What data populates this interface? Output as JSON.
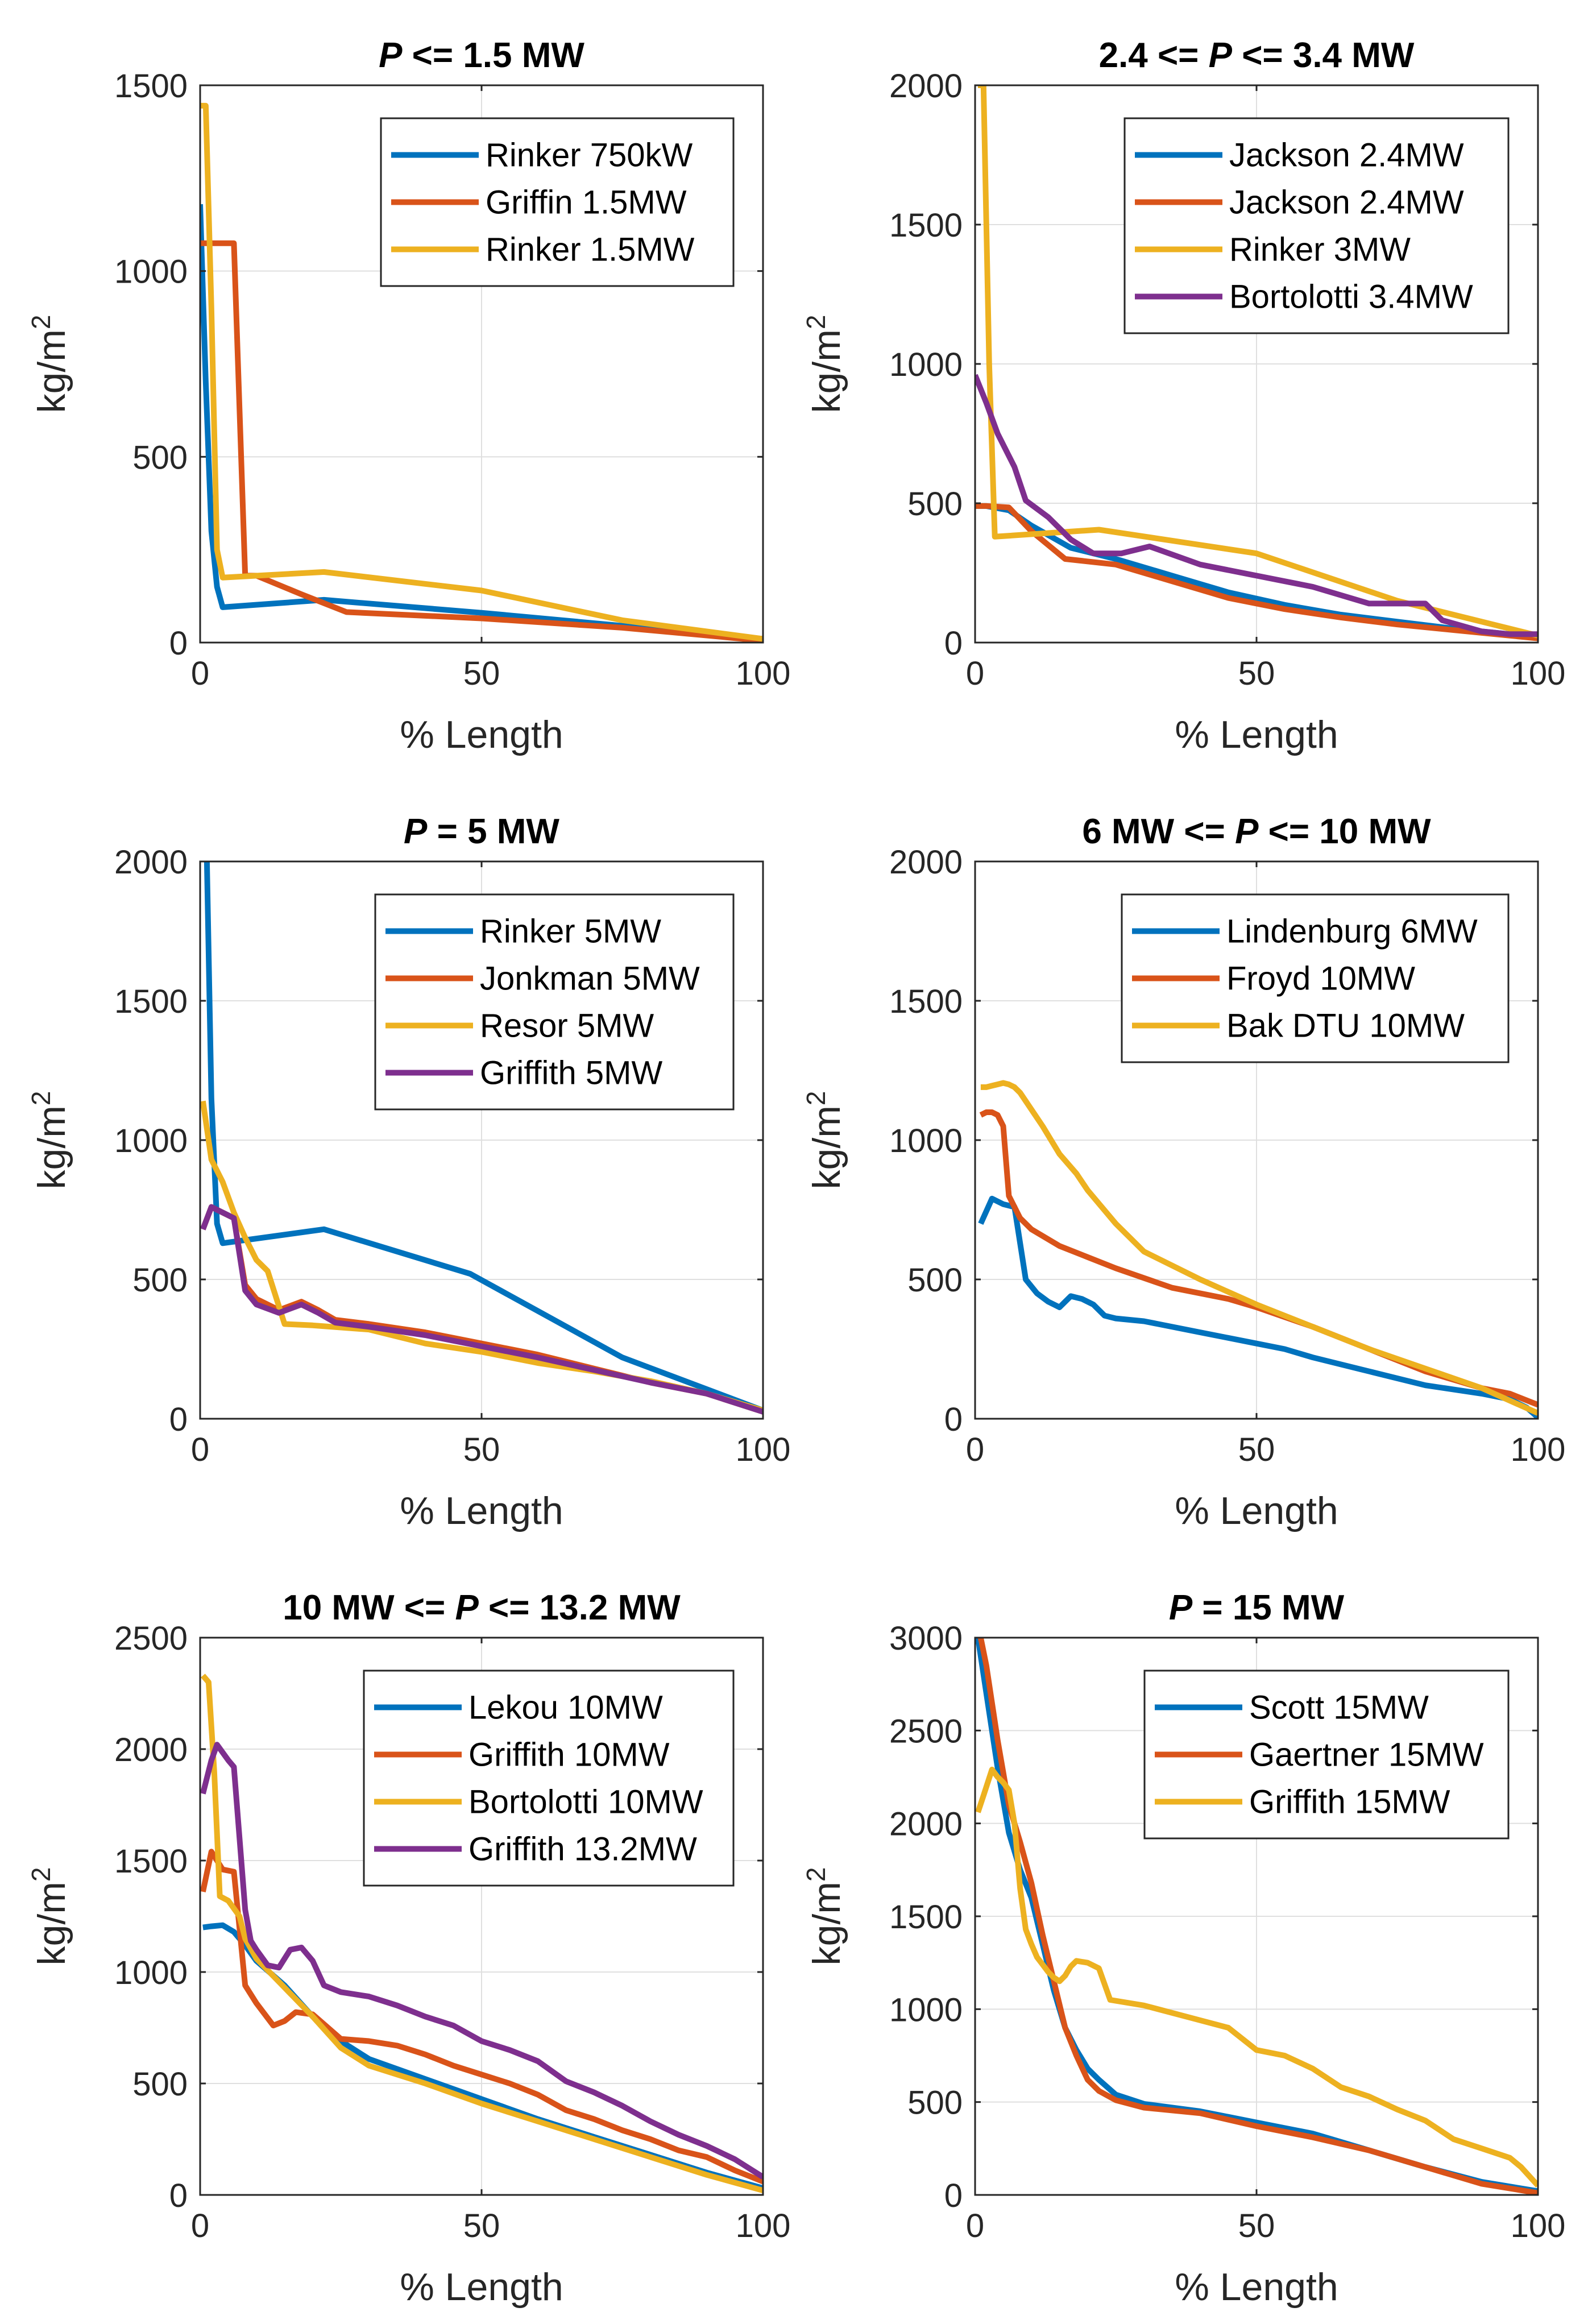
{
  "colors": [
    "#0072BD",
    "#D95319",
    "#EDB120",
    "#7E2F8E"
  ],
  "chart_data": [
    {
      "type": "line",
      "title": {
        "pre": "",
        "italic": "P",
        "post": " <= 1.5 MW"
      },
      "xlabel": "% Length",
      "ylabel_base": "kg/m",
      "ylabel_sup": "2",
      "xlim": [
        0,
        100
      ],
      "ylim": [
        0,
        1500
      ],
      "xticks": [
        0,
        50,
        100
      ],
      "yticks": [
        0,
        500,
        1000,
        1500
      ],
      "legend_position": "top-right",
      "series": [
        {
          "name": "Rinker 750kW",
          "x": [
            0,
            1,
            2,
            3,
            4,
            22,
            50,
            75,
            100
          ],
          "y": [
            1180,
            700,
            300,
            150,
            95,
            115,
            80,
            45,
            10
          ]
        },
        {
          "name": "Griffin 1.5MW",
          "x": [
            0,
            1,
            6,
            8,
            10,
            18,
            26,
            50,
            75,
            100
          ],
          "y": [
            1075,
            1075,
            1075,
            180,
            180,
            130,
            82,
            65,
            40,
            5
          ]
        },
        {
          "name": "Rinker 1.5MW",
          "x": [
            0,
            1,
            2,
            3,
            4,
            22,
            50,
            75,
            100
          ],
          "y": [
            1445,
            1445,
            900,
            250,
            175,
            190,
            140,
            60,
            10
          ]
        }
      ]
    },
    {
      "type": "line",
      "title": {
        "pre": "2.4 <= ",
        "italic": "P",
        "post": " <= 3.4 MW"
      },
      "xlabel": "% Length",
      "ylabel_base": "kg/m",
      "ylabel_sup": "2",
      "xlim": [
        0,
        100
      ],
      "ylim": [
        0,
        2000
      ],
      "xticks": [
        0,
        50,
        100
      ],
      "yticks": [
        0,
        500,
        1000,
        1500,
        2000
      ],
      "legend_position": "top-right",
      "series": [
        {
          "name": "Jackson 2.4MW",
          "x": [
            0,
            2,
            6,
            10,
            17,
            25,
            35,
            45,
            55,
            65,
            75,
            85,
            95,
            100
          ],
          "y": [
            490,
            490,
            475,
            420,
            340,
            300,
            240,
            180,
            135,
            100,
            75,
            50,
            30,
            20
          ]
        },
        {
          "name": "Jackson 2.4MW",
          "x": [
            0,
            2,
            6,
            10,
            16,
            25,
            35,
            45,
            55,
            65,
            75,
            85,
            95,
            100
          ],
          "y": [
            490,
            490,
            485,
            400,
            300,
            280,
            220,
            160,
            120,
            90,
            65,
            45,
            25,
            15
          ]
        },
        {
          "name": "Rinker 3MW",
          "x": [
            0.5,
            1.5,
            2.5,
            3.5,
            22,
            50,
            75,
            100
          ],
          "y": [
            2000,
            2000,
            1000,
            380,
            405,
            320,
            150,
            25
          ]
        },
        {
          "name": "Bortolotti 3.4MW",
          "x": [
            0,
            2,
            4,
            7,
            9,
            13,
            17,
            21,
            26,
            31,
            40,
            50,
            60,
            70,
            80,
            83,
            90,
            95,
            100
          ],
          "y": [
            960,
            860,
            750,
            630,
            510,
            450,
            370,
            320,
            320,
            345,
            280,
            240,
            200,
            140,
            140,
            80,
            40,
            30,
            30
          ]
        }
      ]
    },
    {
      "type": "line",
      "title": {
        "pre": "",
        "italic": "P",
        "post": " = 5 MW"
      },
      "xlabel": "% Length",
      "ylabel_base": "kg/m",
      "ylabel_sup": "2",
      "xlim": [
        0,
        100
      ],
      "ylim": [
        0,
        2000
      ],
      "xticks": [
        0,
        50,
        100
      ],
      "yticks": [
        0,
        500,
        1000,
        1500,
        2000
      ],
      "legend_position": "top-right",
      "series": [
        {
          "name": "Rinker 5MW",
          "x": [
            1.2,
            2,
            3,
            4,
            22,
            48,
            75,
            100
          ],
          "y": [
            2000,
            1150,
            700,
            630,
            680,
            520,
            220,
            30
          ]
        },
        {
          "name": "Jonkman 5MW",
          "x": [
            0.5,
            2,
            4,
            6,
            8,
            10,
            14,
            18,
            21,
            24,
            30,
            40,
            50,
            60,
            70,
            80,
            90,
            100
          ],
          "y": [
            680,
            760,
            740,
            720,
            480,
            430,
            390,
            420,
            390,
            355,
            340,
            310,
            270,
            230,
            180,
            130,
            90,
            25
          ]
        },
        {
          "name": "Resor 5MW",
          "x": [
            0.5,
            2,
            4,
            6,
            8,
            10,
            12,
            15,
            20,
            30,
            40,
            50,
            60,
            70,
            80,
            90,
            100
          ],
          "y": [
            1140,
            930,
            850,
            740,
            650,
            570,
            530,
            340,
            335,
            320,
            270,
            240,
            200,
            170,
            135,
            90,
            30
          ]
        },
        {
          "name": "Griffith 5MW",
          "x": [
            0.5,
            2,
            4,
            6,
            8,
            10,
            14,
            18,
            21,
            24,
            30,
            40,
            50,
            60,
            70,
            80,
            90,
            100
          ],
          "y": [
            680,
            760,
            740,
            720,
            460,
            410,
            380,
            410,
            380,
            345,
            330,
            300,
            260,
            220,
            175,
            130,
            90,
            25
          ]
        }
      ]
    },
    {
      "type": "line",
      "title": {
        "pre": "6 MW <= ",
        "italic": "P",
        "post": " <= 10 MW"
      },
      "xlabel": "% Length",
      "ylabel_base": "kg/m",
      "ylabel_sup": "2",
      "xlim": [
        0,
        100
      ],
      "ylim": [
        0,
        2000
      ],
      "xticks": [
        0,
        50,
        100
      ],
      "yticks": [
        0,
        500,
        1000,
        1500,
        2000
      ],
      "legend_position": "top-right",
      "series": [
        {
          "name": "Lindenburg 6MW",
          "x": [
            1,
            3,
            5,
            7,
            9,
            11,
            13,
            15,
            17,
            19,
            21,
            23,
            25,
            30,
            40,
            45,
            50,
            55,
            60,
            70,
            80,
            90,
            95,
            98,
            100
          ],
          "y": [
            700,
            790,
            770,
            760,
            500,
            450,
            420,
            400,
            440,
            430,
            410,
            370,
            360,
            350,
            310,
            290,
            270,
            250,
            220,
            170,
            120,
            90,
            70,
            40,
            5
          ]
        },
        {
          "name": "Froyd 10MW",
          "x": [
            1,
            2,
            3,
            4,
            5,
            6,
            8,
            10,
            15,
            20,
            25,
            35,
            45,
            50,
            60,
            70,
            80,
            90,
            95,
            100
          ],
          "y": [
            1090,
            1100,
            1100,
            1090,
            1050,
            800,
            720,
            680,
            620,
            580,
            540,
            470,
            430,
            400,
            330,
            250,
            170,
            110,
            90,
            50
          ]
        },
        {
          "name": "Bak DTU 10MW",
          "x": [
            1,
            2,
            3,
            4,
            5,
            6,
            7,
            8,
            10,
            12,
            15,
            18,
            20,
            25,
            30,
            40,
            50,
            60,
            70,
            80,
            90,
            100
          ],
          "y": [
            1190,
            1190,
            1195,
            1200,
            1205,
            1200,
            1190,
            1170,
            1110,
            1050,
            950,
            880,
            820,
            700,
            600,
            500,
            410,
            330,
            250,
            180,
            110,
            20
          ]
        }
      ]
    },
    {
      "type": "line",
      "title": {
        "pre": "10 MW <= ",
        "italic": "P",
        "post": " <= 13.2 MW"
      },
      "xlabel": "% Length",
      "ylabel_base": "kg/m",
      "ylabel_sup": "2",
      "xlim": [
        0,
        100
      ],
      "ylim": [
        0,
        2500
      ],
      "xticks": [
        0,
        50,
        100
      ],
      "yticks": [
        0,
        500,
        1000,
        1500,
        2000,
        2500
      ],
      "legend_position": "top-right",
      "series": [
        {
          "name": "Lekou 10MW",
          "x": [
            0.5,
            2,
            4,
            6,
            8,
            10,
            15,
            20,
            25,
            30,
            40,
            50,
            60,
            70,
            80,
            90,
            100
          ],
          "y": [
            1200,
            1205,
            1210,
            1180,
            1120,
            1050,
            940,
            800,
            690,
            610,
            520,
            430,
            340,
            260,
            180,
            100,
            30
          ]
        },
        {
          "name": "Griffith 10MW",
          "x": [
            0.5,
            2,
            4,
            6,
            8,
            10,
            13,
            15,
            17,
            20,
            25,
            30,
            35,
            40,
            45,
            50,
            55,
            60,
            65,
            70,
            75,
            80,
            85,
            90,
            95,
            100
          ],
          "y": [
            1360,
            1540,
            1460,
            1450,
            940,
            860,
            760,
            780,
            820,
            810,
            700,
            690,
            670,
            630,
            580,
            540,
            500,
            450,
            380,
            340,
            290,
            250,
            200,
            170,
            110,
            60
          ]
        },
        {
          "name": "Bortolotti 10MW",
          "x": [
            0.5,
            1.5,
            2.5,
            3.5,
            5,
            7,
            8,
            10,
            15,
            20,
            25,
            30,
            40,
            50,
            60,
            70,
            80,
            90,
            100
          ],
          "y": [
            2330,
            2300,
            1900,
            1340,
            1320,
            1250,
            1150,
            1060,
            930,
            800,
            660,
            580,
            500,
            410,
            330,
            250,
            170,
            90,
            20
          ]
        },
        {
          "name": "Griffith 13.2MW",
          "x": [
            0.5,
            2,
            3,
            5,
            6,
            7,
            8,
            9,
            10,
            12,
            14,
            16,
            18,
            20,
            22,
            25,
            30,
            35,
            40,
            45,
            50,
            55,
            60,
            65,
            70,
            75,
            80,
            85,
            90,
            95,
            100
          ],
          "y": [
            1800,
            1950,
            2020,
            1950,
            1920,
            1600,
            1280,
            1140,
            1100,
            1030,
            1020,
            1100,
            1110,
            1050,
            940,
            910,
            890,
            850,
            800,
            760,
            690,
            650,
            600,
            510,
            460,
            400,
            330,
            270,
            220,
            160,
            80
          ]
        }
      ]
    },
    {
      "type": "line",
      "title": {
        "pre": "",
        "italic": "P",
        "post": " = 15 MW"
      },
      "xlabel": "% Length",
      "ylabel_base": "kg/m",
      "ylabel_sup": "2",
      "xlim": [
        0,
        100
      ],
      "ylim": [
        0,
        3000
      ],
      "xticks": [
        0,
        50,
        100
      ],
      "yticks": [
        0,
        500,
        1000,
        1500,
        2000,
        2500,
        3000
      ],
      "legend_position": "top-right",
      "series": [
        {
          "name": "Scott 15MW",
          "x": [
            0.5,
            2,
            4,
            6,
            8,
            10,
            12,
            14,
            16,
            18,
            20,
            22,
            25,
            30,
            40,
            50,
            60,
            70,
            80,
            90,
            100
          ],
          "y": [
            3000,
            2700,
            2300,
            1950,
            1750,
            1600,
            1350,
            1100,
            900,
            780,
            680,
            620,
            540,
            490,
            450,
            390,
            330,
            240,
            150,
            70,
            20
          ]
        },
        {
          "name": "Gaertner 15MW",
          "x": [
            1,
            2,
            4,
            6,
            8,
            10,
            12,
            14,
            16,
            18,
            20,
            22,
            25,
            30,
            40,
            50,
            60,
            70,
            80,
            90,
            100
          ],
          "y": [
            3000,
            2850,
            2450,
            2100,
            1900,
            1680,
            1400,
            1150,
            900,
            750,
            620,
            560,
            510,
            470,
            440,
            370,
            310,
            240,
            150,
            60,
            10
          ]
        },
        {
          "name": "Griffith 15MW",
          "x": [
            0.5,
            1.5,
            3,
            4,
            5,
            6,
            7,
            8,
            9,
            10,
            11,
            12,
            13,
            14,
            15,
            16,
            17,
            18,
            20,
            22,
            24,
            30,
            40,
            45,
            50,
            55,
            60,
            65,
            70,
            75,
            80,
            85,
            90,
            95,
            97,
            100
          ],
          "y": [
            2060,
            2150,
            2290,
            2250,
            2220,
            2180,
            2000,
            1650,
            1430,
            1350,
            1280,
            1240,
            1200,
            1170,
            1150,
            1180,
            1230,
            1260,
            1250,
            1220,
            1050,
            1020,
            940,
            900,
            780,
            750,
            680,
            580,
            530,
            460,
            400,
            300,
            250,
            200,
            150,
            50
          ]
        }
      ]
    }
  ]
}
